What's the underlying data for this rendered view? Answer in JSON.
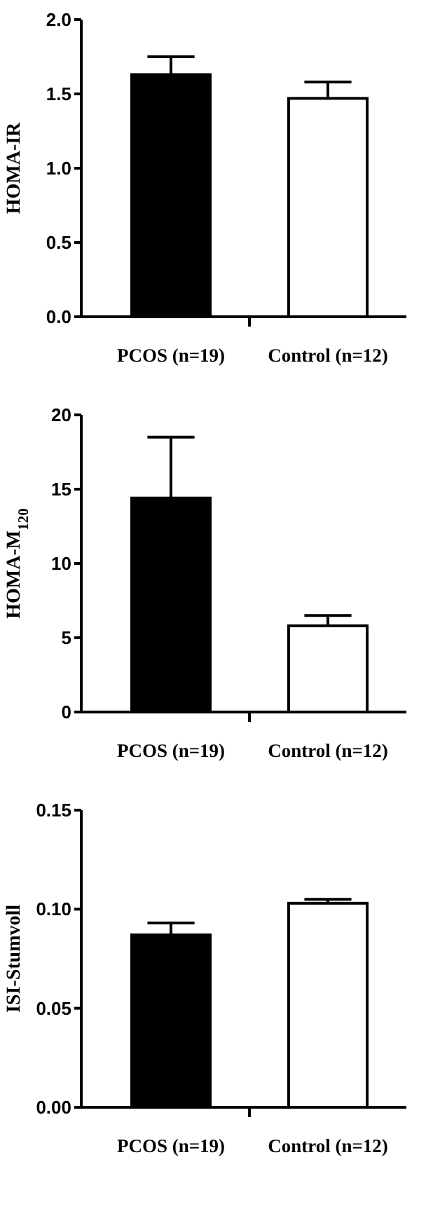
{
  "chart_data": [
    {
      "type": "bar",
      "ylabel": "HOMA-IR",
      "categories": [
        "PCOS (n=19)",
        "Control (n=12)"
      ],
      "values": [
        1.63,
        1.47
      ],
      "colors": [
        "#000000",
        "#ffffff"
      ],
      "errors": [
        [
          1.63,
          1.75
        ],
        [
          1.47,
          1.58
        ]
      ],
      "ylim": [
        0,
        2
      ],
      "yticks": [
        {
          "value": 0,
          "label": "0.0"
        },
        {
          "value": 0.5,
          "label": "0.5"
        },
        {
          "value": 1,
          "label": "1.0"
        },
        {
          "value": 1.5,
          "label": "1.5"
        },
        {
          "value": 2,
          "label": "2.0"
        }
      ],
      "grid": false
    },
    {
      "type": "bar",
      "ylabel": "HOMA-M$_{120}$",
      "categories": [
        "PCOS (n=19)",
        "Control (n=12)"
      ],
      "values": [
        14.4,
        5.8
      ],
      "colors": [
        "#000000",
        "#ffffff"
      ],
      "errors": [
        [
          14.4,
          18.5
        ],
        [
          5.8,
          6.5
        ]
      ],
      "ylim": [
        0,
        20
      ],
      "yticks": [
        0,
        5,
        10,
        15,
        20
      ],
      "grid": false
    },
    {
      "type": "bar",
      "ylabel": "ISI-Stumvoll",
      "categories": [
        "PCOS (n=19)",
        "Control (n=12)"
      ],
      "values": [
        0.087,
        0.103
      ],
      "colors": [
        "#000000",
        "#ffffff"
      ],
      "errors": [
        [
          0.087,
          0.093
        ],
        [
          0.103,
          0.105
        ]
      ],
      "ylim": [
        0,
        0.15
      ],
      "yticks": [
        {
          "value": 0,
          "label": "0.00"
        },
        {
          "value": 0.05,
          "label": "0.05"
        },
        {
          "value": 0.1,
          "label": "0.10"
        },
        {
          "value": 0.15,
          "label": "0.15"
        }
      ],
      "grid": false
    }
  ]
}
